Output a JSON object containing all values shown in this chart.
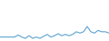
{
  "values": [
    2,
    2,
    2,
    2,
    2,
    3.5,
    2,
    1,
    3,
    1,
    2,
    1,
    2.5,
    4,
    2,
    3,
    4.5,
    3,
    4,
    3,
    4,
    6,
    5,
    6,
    10,
    6,
    5,
    7,
    6,
    6,
    5
  ],
  "line_color": "#5ba3d0",
  "background_color": "#ffffff",
  "linewidth": 0.8,
  "ylim_min": -1,
  "ylim_max": 30
}
